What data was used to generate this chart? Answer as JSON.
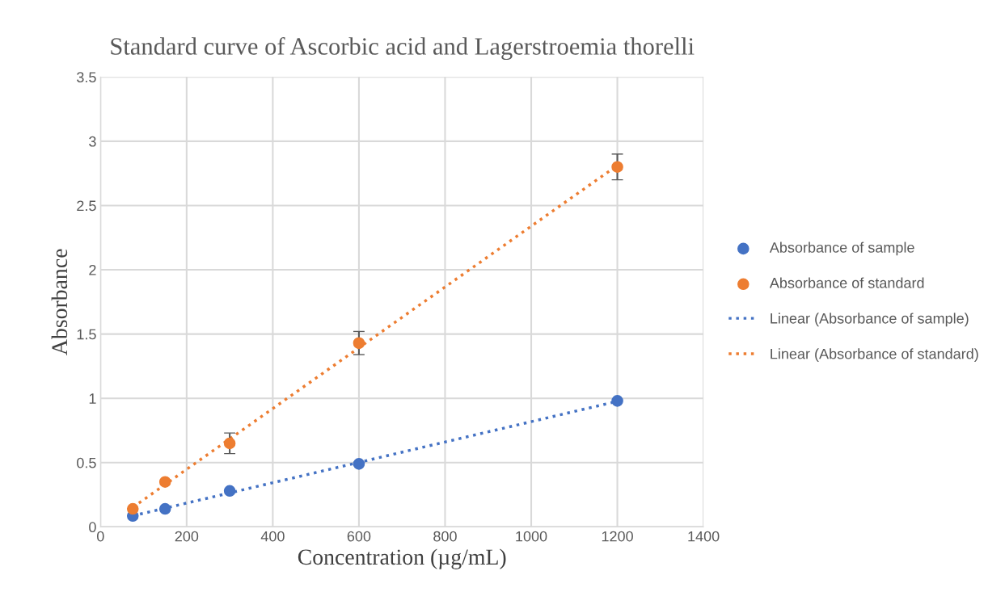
{
  "chart_data": {
    "type": "scatter",
    "title": "Standard curve of Ascorbic acid and Lagerstroemia thorelli",
    "xlabel": "Concentration (µg/mL)",
    "ylabel": "Absorbance",
    "series": [
      {
        "name": "Absorbance of sample",
        "marker": "circle",
        "color": "#4472c4",
        "x": [
          75,
          150,
          300,
          600,
          1200
        ],
        "values": [
          0.085,
          0.14,
          0.28,
          0.49,
          0.98
        ]
      },
      {
        "name": "Absorbance of standard",
        "marker": "circle",
        "color": "#ed7d31",
        "x": [
          75,
          150,
          300,
          600,
          1200
        ],
        "values": [
          0.14,
          0.35,
          0.65,
          1.43,
          2.8
        ],
        "errors": [
          null,
          null,
          0.08,
          0.09,
          0.1
        ]
      },
      {
        "name": "Linear (Absorbance of sample)",
        "type": "line",
        "color": "#4472c4",
        "line_style": "dotted",
        "x": [
          75,
          1200
        ],
        "values": [
          0.086,
          0.977
        ]
      },
      {
        "name": "Linear (Absorbance of standard)",
        "type": "line",
        "color": "#ed7d31",
        "line_style": "dotted",
        "x": [
          75,
          1200
        ],
        "values": [
          0.152,
          2.812
        ]
      }
    ],
    "xlim": [
      0,
      1400
    ],
    "xticks": [
      0,
      200,
      400,
      600,
      800,
      1000,
      1200,
      1400
    ],
    "ylim": [
      0,
      3.5
    ],
    "yticks": [
      0,
      0.5,
      1,
      1.5,
      2,
      2.5,
      3,
      3.5
    ],
    "grid": true,
    "legend": "right"
  }
}
